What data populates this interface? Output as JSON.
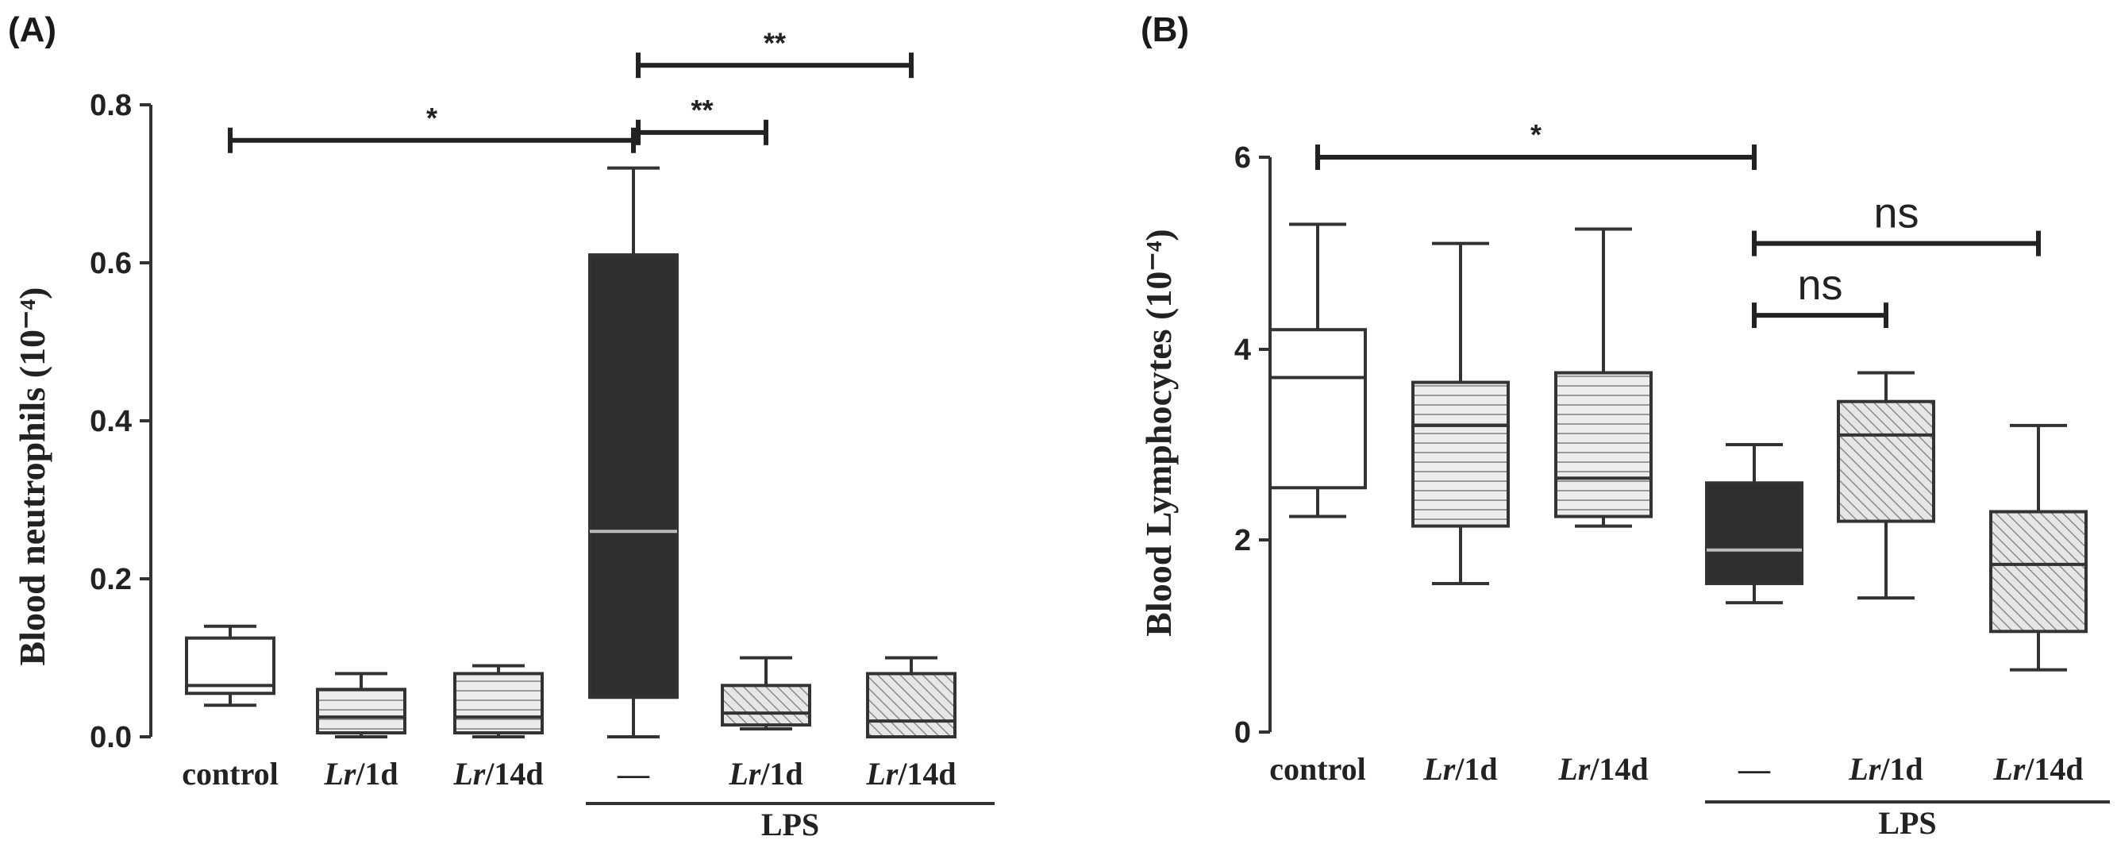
{
  "chart_data": [
    {
      "panel": "(A)",
      "type": "box",
      "ylabel": "Blood neutrophils (10⁻⁴)",
      "ylim": [
        0,
        0.8
      ],
      "yticks": [
        "0.0",
        "0.2",
        "0.4",
        "0.6",
        "0.8"
      ],
      "group_label": "LPS",
      "categories": [
        {
          "label": "control",
          "italic": ""
        },
        {
          "label": "/1d",
          "italic": "Lr"
        },
        {
          "label": "/14d",
          "italic": "Lr"
        },
        {
          "label": "—",
          "italic": ""
        },
        {
          "label": "/1d",
          "italic": "Lr"
        },
        {
          "label": "/14d",
          "italic": "Lr"
        }
      ],
      "boxes": [
        {
          "min": 0.04,
          "q1": 0.055,
          "median": 0.065,
          "q3": 0.125,
          "max": 0.14,
          "fill": "white"
        },
        {
          "min": 0.0,
          "q1": 0.005,
          "median": 0.025,
          "q3": 0.06,
          "max": 0.08,
          "fill": "hlines"
        },
        {
          "min": 0.0,
          "q1": 0.005,
          "median": 0.025,
          "q3": 0.08,
          "max": 0.09,
          "fill": "hlines"
        },
        {
          "min": 0.0,
          "q1": 0.05,
          "median": 0.26,
          "q3": 0.61,
          "max": 0.72,
          "fill": "dark"
        },
        {
          "min": 0.01,
          "q1": 0.015,
          "median": 0.03,
          "q3": 0.065,
          "max": 0.1,
          "fill": "diag"
        },
        {
          "min": 0.0,
          "q1": 0.0,
          "median": 0.02,
          "q3": 0.08,
          "max": 0.1,
          "fill": "diag"
        }
      ],
      "significance": [
        {
          "from": 0,
          "to": 3,
          "level": 0.755,
          "label": "*"
        },
        {
          "from": 3,
          "to": 4,
          "level": 0.765,
          "label": "**"
        },
        {
          "from": 3,
          "to": 5,
          "level": 0.85,
          "label": "**"
        }
      ]
    },
    {
      "panel": "(B)",
      "type": "box",
      "ylabel": "Blood Lymphocytes (10⁻⁴)",
      "ylim": [
        0,
        6
      ],
      "yticks": [
        "0",
        "2",
        "4",
        "6"
      ],
      "group_label": "LPS",
      "categories": [
        {
          "label": "control",
          "italic": ""
        },
        {
          "label": "/1d",
          "italic": "Lr"
        },
        {
          "label": "/14d",
          "italic": "Lr"
        },
        {
          "label": "—",
          "italic": ""
        },
        {
          "label": "/1d",
          "italic": "Lr"
        },
        {
          "label": "/14d",
          "italic": "Lr"
        }
      ],
      "boxes": [
        {
          "min": 2.25,
          "q1": 2.55,
          "median": 3.7,
          "q3": 4.2,
          "max": 5.3,
          "fill": "white"
        },
        {
          "min": 1.55,
          "q1": 2.15,
          "median": 3.2,
          "q3": 3.65,
          "max": 5.1,
          "fill": "hlines"
        },
        {
          "min": 2.15,
          "q1": 2.25,
          "median": 2.65,
          "q3": 3.75,
          "max": 5.25,
          "fill": "hlines"
        },
        {
          "min": 1.35,
          "q1": 1.55,
          "median": 1.9,
          "q3": 2.6,
          "max": 3.0,
          "fill": "dark"
        },
        {
          "min": 1.4,
          "q1": 2.2,
          "median": 3.1,
          "q3": 3.45,
          "max": 3.75,
          "fill": "diag"
        },
        {
          "min": 0.65,
          "q1": 1.05,
          "median": 1.75,
          "q3": 2.3,
          "max": 3.2,
          "fill": "diag"
        }
      ],
      "significance": [
        {
          "from": 0,
          "to": 3,
          "level": 6.0,
          "label": "*"
        },
        {
          "from": 3,
          "to": 4,
          "level": 4.35,
          "label": "ns"
        },
        {
          "from": 3,
          "to": 5,
          "level": 5.1,
          "label": "ns"
        }
      ]
    }
  ]
}
